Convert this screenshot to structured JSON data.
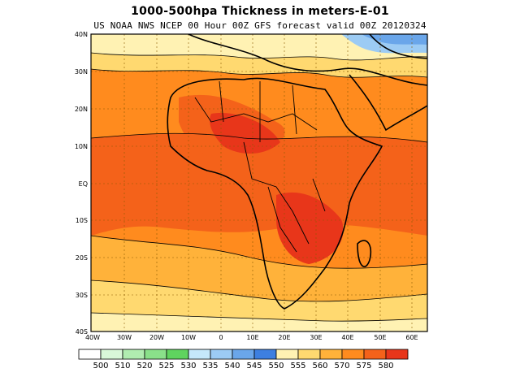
{
  "title": "1000-500hpa Thickness in meters-E-01",
  "subtitle": "US NOAA NWS NCEP 00 Hour 00Z GFS forecast valid 00Z 20120324",
  "map": {
    "lat_labels": [
      "40N",
      "30N",
      "20N",
      "10N",
      "EQ",
      "10S",
      "20S",
      "30S",
      "40S"
    ],
    "lon_labels": [
      "40W",
      "30W",
      "20W",
      "10W",
      "0",
      "10E",
      "20E",
      "30E",
      "40E",
      "50E",
      "60E"
    ],
    "lat_range": [
      -40,
      40
    ],
    "lon_range": [
      -40,
      65
    ],
    "gridlines": "dotted"
  },
  "legend": {
    "labels": [
      "500",
      "510",
      "520",
      "525",
      "530",
      "535",
      "540",
      "545",
      "550",
      "555",
      "560",
      "570",
      "575",
      "580"
    ],
    "colors": [
      "#ffffff",
      "#d9f7d9",
      "#b0ecb0",
      "#8ae08a",
      "#5fd35f",
      "#c5e8fb",
      "#9ccbf4",
      "#6aa6ea",
      "#3d7fe0",
      "#fff2b3",
      "#ffd970",
      "#ffb23a",
      "#ff8b1e",
      "#f4621a",
      "#e8361a"
    ]
  }
}
